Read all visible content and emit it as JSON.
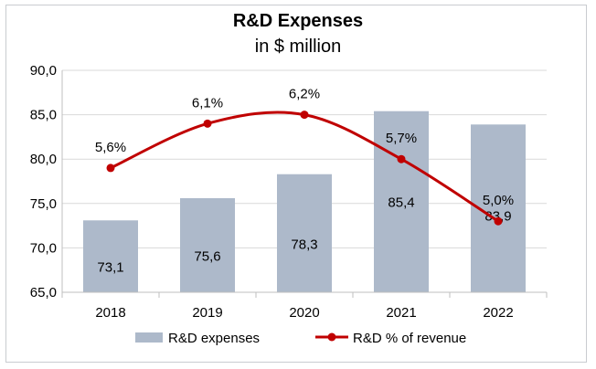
{
  "chart_data": {
    "type": "bar",
    "title": "R&D Expenses",
    "subtitle": "in $ million",
    "categories": [
      "2018",
      "2019",
      "2020",
      "2021",
      "2022"
    ],
    "series": [
      {
        "name": "R&D expenses",
        "kind": "bar",
        "values": [
          73.1,
          75.6,
          78.3,
          85.4,
          83.9
        ],
        "labels": [
          "73,1",
          "75,6",
          "78,3",
          "85,4",
          "83,9"
        ],
        "color": "#adb9ca"
      },
      {
        "name": "R&D % of revenue",
        "kind": "line",
        "values": [
          5.6,
          6.1,
          6.2,
          5.7,
          5.0
        ],
        "labels": [
          "5,6%",
          "6,1%",
          "6,2%",
          "5,7%",
          "5,0%"
        ],
        "color": "#c00000"
      }
    ],
    "yticks": [
      "65,0",
      "70,0",
      "75,0",
      "80,0",
      "85,0",
      "90,0"
    ],
    "ylim": [
      65,
      90
    ],
    "legend_position": "bottom"
  }
}
